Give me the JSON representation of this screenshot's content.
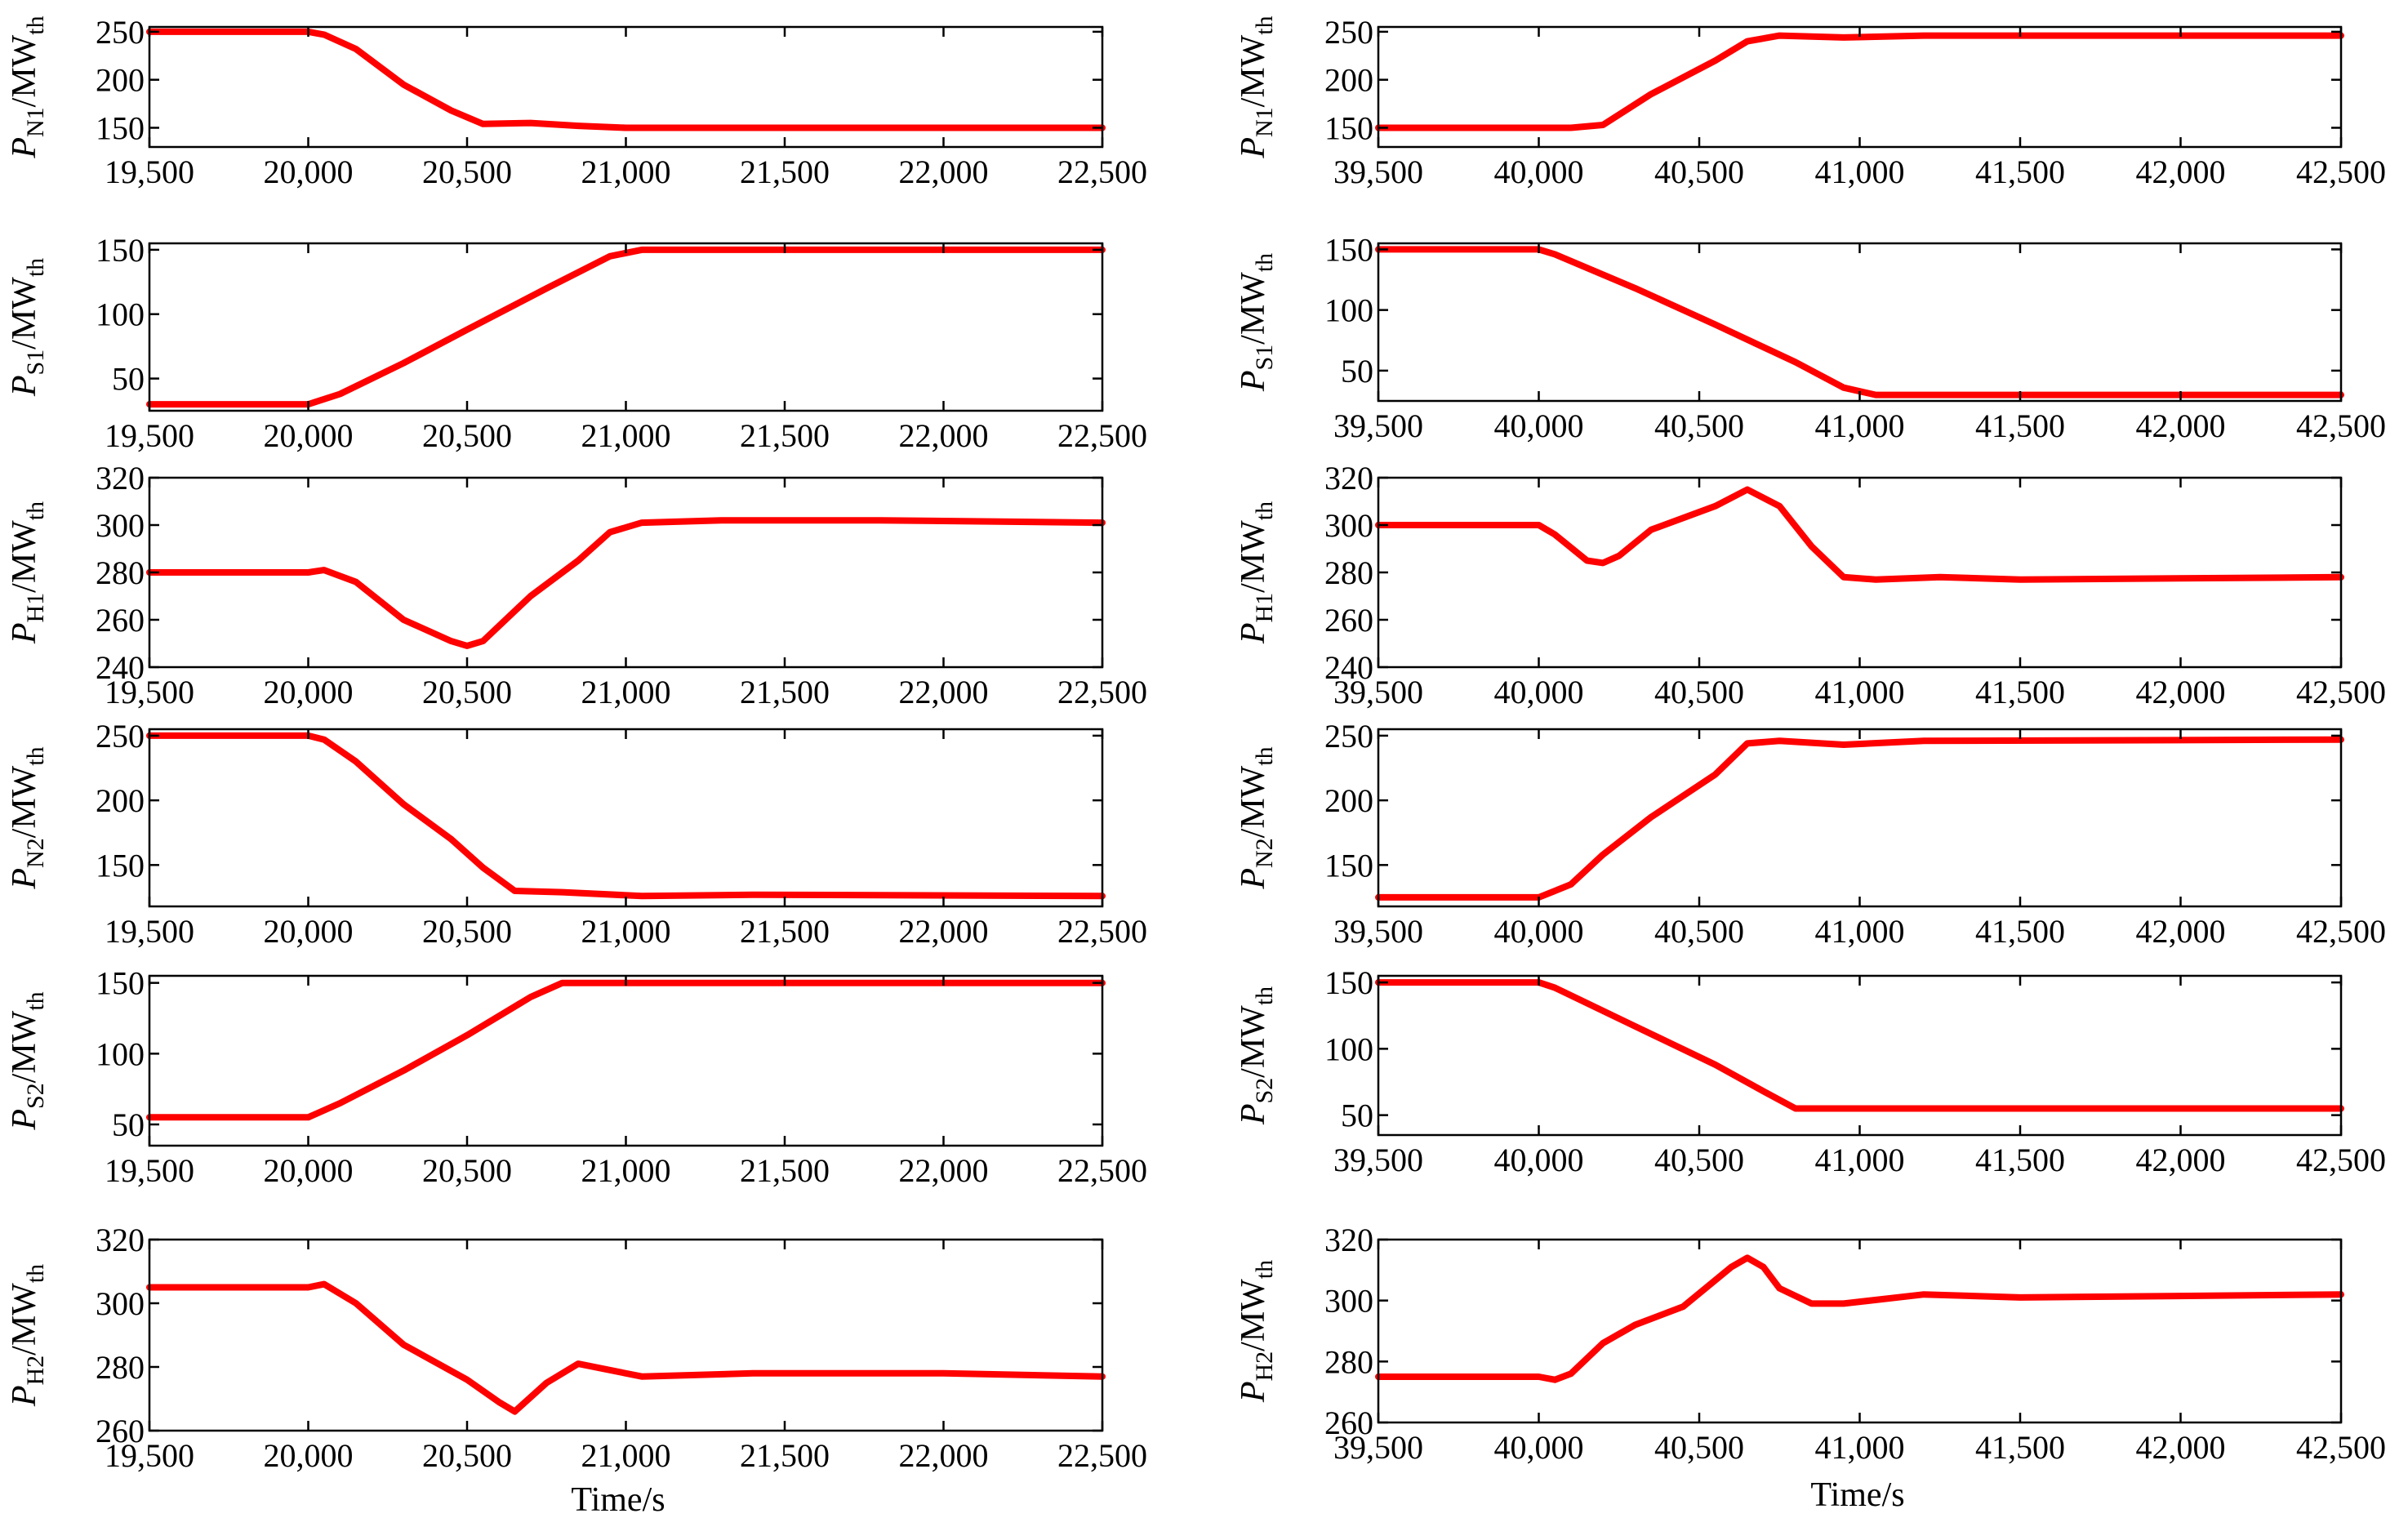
{
  "figure": {
    "xlabel": "Time/s",
    "line_color": "#ff0000"
  },
  "chart_data": [
    {
      "id": "pn1-left",
      "type": "line",
      "ylabel_main": "P",
      "ylabel_sub": "N1",
      "ylabel_unit": "/MW",
      "ylabel_unit_sub": "th",
      "xlim": [
        19500,
        22500
      ],
      "ylim": [
        130,
        255
      ],
      "xticks": [
        19500,
        20000,
        20500,
        21000,
        21500,
        22000,
        22500
      ],
      "xtick_labels": [
        "19,500",
        "20,000",
        "20,500",
        "21,000",
        "21,500",
        "22,000",
        "22,500"
      ],
      "yticks": [
        150,
        200,
        250
      ],
      "ytick_labels": [
        "150",
        "200",
        "250"
      ],
      "x": [
        19500,
        20000,
        20050,
        20150,
        20300,
        20450,
        20550,
        20700,
        20850,
        21000,
        22500
      ],
      "y": [
        250,
        250,
        247,
        232,
        195,
        168,
        154,
        155,
        152,
        150,
        150
      ]
    },
    {
      "id": "ps1-left",
      "type": "line",
      "ylabel_main": "P",
      "ylabel_sub": "S1",
      "ylabel_unit": "/MW",
      "ylabel_unit_sub": "th",
      "xlim": [
        19500,
        22500
      ],
      "ylim": [
        25,
        155
      ],
      "xticks": [
        19500,
        20000,
        20500,
        21000,
        21500,
        22000,
        22500
      ],
      "xtick_labels": [
        "19,500",
        "20,000",
        "20,500",
        "21,000",
        "21,500",
        "22,000",
        "22,500"
      ],
      "yticks": [
        50,
        100,
        150
      ],
      "ytick_labels": [
        "50",
        "100",
        "150"
      ],
      "x": [
        19500,
        20000,
        20100,
        20300,
        20500,
        20750,
        20950,
        21050,
        22500
      ],
      "y": [
        30,
        30,
        38,
        62,
        88,
        120,
        145,
        150,
        150
      ]
    },
    {
      "id": "ph1-left",
      "type": "line",
      "ylabel_main": "P",
      "ylabel_sub": "H1",
      "ylabel_unit": "/MW",
      "ylabel_unit_sub": "th",
      "xlim": [
        19500,
        22500
      ],
      "ylim": [
        240,
        320
      ],
      "xticks": [
        19500,
        20000,
        20500,
        21000,
        21500,
        22000,
        22500
      ],
      "xtick_labels": [
        "19,500",
        "20,000",
        "20,500",
        "21,000",
        "21,500",
        "22,000",
        "22,500"
      ],
      "yticks": [
        240,
        260,
        280,
        300,
        320
      ],
      "ytick_labels": [
        "240",
        "260",
        "280",
        "300",
        "320"
      ],
      "x": [
        19500,
        20000,
        20050,
        20150,
        20300,
        20450,
        20500,
        20550,
        20700,
        20850,
        20950,
        21050,
        21300,
        21800,
        22500
      ],
      "y": [
        280,
        280,
        281,
        276,
        260,
        251,
        249,
        251,
        270,
        285,
        297,
        301,
        302,
        302,
        301
      ]
    },
    {
      "id": "pn2-left",
      "type": "line",
      "ylabel_main": "P",
      "ylabel_sub": "N2",
      "ylabel_unit": "/MW",
      "ylabel_unit_sub": "th",
      "xlim": [
        19500,
        22500
      ],
      "ylim": [
        118,
        255
      ],
      "xticks": [
        19500,
        20000,
        20500,
        21000,
        21500,
        22000,
        22500
      ],
      "xtick_labels": [
        "19,500",
        "20,000",
        "20,500",
        "21,000",
        "21,500",
        "22,000",
        "22,500"
      ],
      "yticks": [
        150,
        200,
        250
      ],
      "ytick_labels": [
        "150",
        "200",
        "250"
      ],
      "x": [
        19500,
        20000,
        20050,
        20150,
        20300,
        20450,
        20550,
        20650,
        20800,
        21050,
        21400,
        22500
      ],
      "y": [
        250,
        250,
        247,
        230,
        197,
        170,
        148,
        130,
        129,
        126,
        127,
        126
      ]
    },
    {
      "id": "ps2-left",
      "type": "line",
      "ylabel_main": "P",
      "ylabel_sub": "S2",
      "ylabel_unit": "/MW",
      "ylabel_unit_sub": "th",
      "xlim": [
        19500,
        22500
      ],
      "ylim": [
        35,
        155
      ],
      "xticks": [
        19500,
        20000,
        20500,
        21000,
        21500,
        22000,
        22500
      ],
      "xtick_labels": [
        "19,500",
        "20,000",
        "20,500",
        "21,000",
        "21,500",
        "22,000",
        "22,500"
      ],
      "yticks": [
        50,
        100,
        150
      ],
      "ytick_labels": [
        "50",
        "100",
        "150"
      ],
      "x": [
        19500,
        20000,
        20100,
        20300,
        20500,
        20700,
        20800,
        22500
      ],
      "y": [
        55,
        55,
        65,
        88,
        113,
        140,
        150,
        150
      ]
    },
    {
      "id": "ph2-left",
      "type": "line",
      "ylabel_main": "P",
      "ylabel_sub": "H2",
      "ylabel_unit": "/MW",
      "ylabel_unit_sub": "th",
      "xlim": [
        19500,
        22500
      ],
      "ylim": [
        260,
        320
      ],
      "xticks": [
        19500,
        20000,
        20500,
        21000,
        21500,
        22000,
        22500
      ],
      "xtick_labels": [
        "19,500",
        "20,000",
        "20,500",
        "21,000",
        "21,500",
        "22,000",
        "22,500"
      ],
      "yticks": [
        260,
        280,
        300,
        320
      ],
      "ytick_labels": [
        "260",
        "280",
        "300",
        "320"
      ],
      "x": [
        19500,
        20000,
        20050,
        20150,
        20300,
        20500,
        20600,
        20650,
        20750,
        20850,
        21050,
        21400,
        22000,
        22500
      ],
      "y": [
        305,
        305,
        306,
        300,
        287,
        276,
        269,
        266,
        275,
        281,
        277,
        278,
        278,
        277
      ]
    },
    {
      "id": "pn1-right",
      "type": "line",
      "ylabel_main": "P",
      "ylabel_sub": "N1",
      "ylabel_unit": "/MW",
      "ylabel_unit_sub": "th",
      "xlim": [
        39500,
        42500
      ],
      "ylim": [
        130,
        255
      ],
      "xticks": [
        39500,
        40000,
        40500,
        41000,
        41500,
        42000,
        42500
      ],
      "xtick_labels": [
        "39,500",
        "40,000",
        "40,500",
        "41,000",
        "41,500",
        "42,000",
        "42,500"
      ],
      "yticks": [
        150,
        200,
        250
      ],
      "ytick_labels": [
        "150",
        "200",
        "250"
      ],
      "x": [
        39500,
        40100,
        40200,
        40350,
        40550,
        40650,
        40750,
        40950,
        41200,
        42500
      ],
      "y": [
        150,
        150,
        153,
        185,
        220,
        240,
        246,
        244,
        246,
        246
      ]
    },
    {
      "id": "ps1-right",
      "type": "line",
      "ylabel_main": "P",
      "ylabel_sub": "S1",
      "ylabel_unit": "/MW",
      "ylabel_unit_sub": "th",
      "xlim": [
        39500,
        42500
      ],
      "ylim": [
        25,
        155
      ],
      "xticks": [
        39500,
        40000,
        40500,
        41000,
        41500,
        42000,
        42500
      ],
      "xtick_labels": [
        "39,500",
        "40,000",
        "40,500",
        "41,000",
        "41,500",
        "42,000",
        "42,500"
      ],
      "yticks": [
        50,
        100,
        150
      ],
      "ytick_labels": [
        "50",
        "100",
        "150"
      ],
      "x": [
        39500,
        40000,
        40050,
        40300,
        40550,
        40800,
        40950,
        41050,
        42500
      ],
      "y": [
        150,
        150,
        146,
        118,
        88,
        57,
        36,
        30,
        30
      ]
    },
    {
      "id": "ph1-right",
      "type": "line",
      "ylabel_main": "P",
      "ylabel_sub": "H1",
      "ylabel_unit": "/MW",
      "ylabel_unit_sub": "th",
      "xlim": [
        39500,
        42500
      ],
      "ylim": [
        240,
        320
      ],
      "xticks": [
        39500,
        40000,
        40500,
        41000,
        41500,
        42000,
        42500
      ],
      "xtick_labels": [
        "39,500",
        "40,000",
        "40,500",
        "41,000",
        "41,500",
        "42,000",
        "42,500"
      ],
      "yticks": [
        240,
        260,
        280,
        300,
        320
      ],
      "ytick_labels": [
        "240",
        "260",
        "280",
        "300",
        "320"
      ],
      "x": [
        39500,
        40000,
        40050,
        40150,
        40200,
        40250,
        40350,
        40550,
        40650,
        40750,
        40850,
        40950,
        41050,
        41250,
        41500,
        42500
      ],
      "y": [
        300,
        300,
        296,
        285,
        284,
        287,
        298,
        308,
        315,
        308,
        291,
        278,
        277,
        278,
        277,
        278
      ]
    },
    {
      "id": "pn2-right",
      "type": "line",
      "ylabel_main": "P",
      "ylabel_sub": "N2",
      "ylabel_unit": "/MW",
      "ylabel_unit_sub": "th",
      "xlim": [
        39500,
        42500
      ],
      "ylim": [
        118,
        255
      ],
      "xticks": [
        39500,
        40000,
        40500,
        41000,
        41500,
        42000,
        42500
      ],
      "xtick_labels": [
        "39,500",
        "40,000",
        "40,500",
        "41,000",
        "41,500",
        "42,000",
        "42,500"
      ],
      "yticks": [
        150,
        200,
        250
      ],
      "ytick_labels": [
        "150",
        "200",
        "250"
      ],
      "x": [
        39500,
        40000,
        40100,
        40200,
        40350,
        40550,
        40650,
        40750,
        40950,
        41200,
        42500
      ],
      "y": [
        125,
        125,
        135,
        158,
        187,
        220,
        244,
        246,
        243,
        246,
        247
      ]
    },
    {
      "id": "ps2-right",
      "type": "line",
      "ylabel_main": "P",
      "ylabel_sub": "S2",
      "ylabel_unit": "/MW",
      "ylabel_unit_sub": "th",
      "xlim": [
        39500,
        42500
      ],
      "ylim": [
        35,
        155
      ],
      "xticks": [
        39500,
        40000,
        40500,
        41000,
        41500,
        42000,
        42500
      ],
      "xtick_labels": [
        "39,500",
        "40,000",
        "40,500",
        "41,000",
        "41,500",
        "42,000",
        "42,500"
      ],
      "yticks": [
        50,
        100,
        150
      ],
      "ytick_labels": [
        "50",
        "100",
        "150"
      ],
      "x": [
        39500,
        40000,
        40050,
        40300,
        40550,
        40700,
        40800,
        42500
      ],
      "y": [
        150,
        150,
        146,
        117,
        88,
        68,
        55,
        55
      ]
    },
    {
      "id": "ph2-right",
      "type": "line",
      "ylabel_main": "P",
      "ylabel_sub": "H2",
      "ylabel_unit": "/MW",
      "ylabel_unit_sub": "th",
      "xlim": [
        39500,
        42500
      ],
      "ylim": [
        260,
        320
      ],
      "xticks": [
        39500,
        40000,
        40500,
        41000,
        41500,
        42000,
        42500
      ],
      "xtick_labels": [
        "39,500",
        "40,000",
        "40,500",
        "41,000",
        "41,500",
        "42,000",
        "42,500"
      ],
      "yticks": [
        260,
        280,
        300,
        320
      ],
      "ytick_labels": [
        "260",
        "280",
        "300",
        "320"
      ],
      "x": [
        39500,
        40000,
        40050,
        40100,
        40200,
        40300,
        40450,
        40600,
        40650,
        40700,
        40750,
        40850,
        40950,
        41200,
        41500,
        42500
      ],
      "y": [
        275,
        275,
        274,
        276,
        286,
        292,
        298,
        311,
        314,
        311,
        304,
        299,
        299,
        302,
        301,
        302
      ]
    }
  ]
}
